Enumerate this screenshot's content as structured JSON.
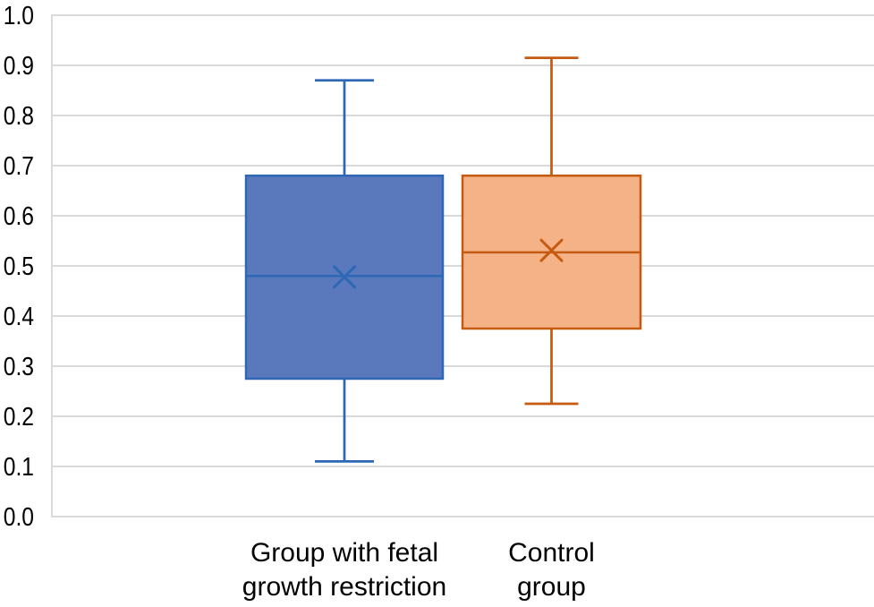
{
  "chart_data": {
    "type": "boxplot",
    "title": "",
    "ylim": [
      0.0,
      1.0
    ],
    "ytick_step": 0.1,
    "ytick_labels": [
      "1.0",
      "0.9",
      "0.8",
      "0.7",
      "0.6",
      "0.5",
      "0.4",
      "0.3",
      "0.2",
      "0.1",
      "0.0"
    ],
    "grid": true,
    "legend": "none",
    "colors": {
      "gridline": "#D9D9D9",
      "axis_line": "#D9D9D9",
      "text": "#000000"
    },
    "categories": [
      {
        "lines": [
          "Group with fetal",
          "growth restriction"
        ]
      },
      {
        "lines": [
          "Control",
          "group"
        ]
      }
    ],
    "series": [
      {
        "name": "Group with fetal growth restriction",
        "min": 0.11,
        "q1": 0.275,
        "median": 0.48,
        "q3": 0.68,
        "max": 0.87,
        "mean": 0.478,
        "fill": "#5A79BD",
        "stroke": "#2E68B4"
      },
      {
        "name": "Control group",
        "min": 0.225,
        "q1": 0.375,
        "median": 0.527,
        "q3": 0.68,
        "max": 0.915,
        "mean": 0.531,
        "fill": "#F5B287",
        "stroke": "#C55A11"
      }
    ],
    "mean_marker": "x"
  }
}
